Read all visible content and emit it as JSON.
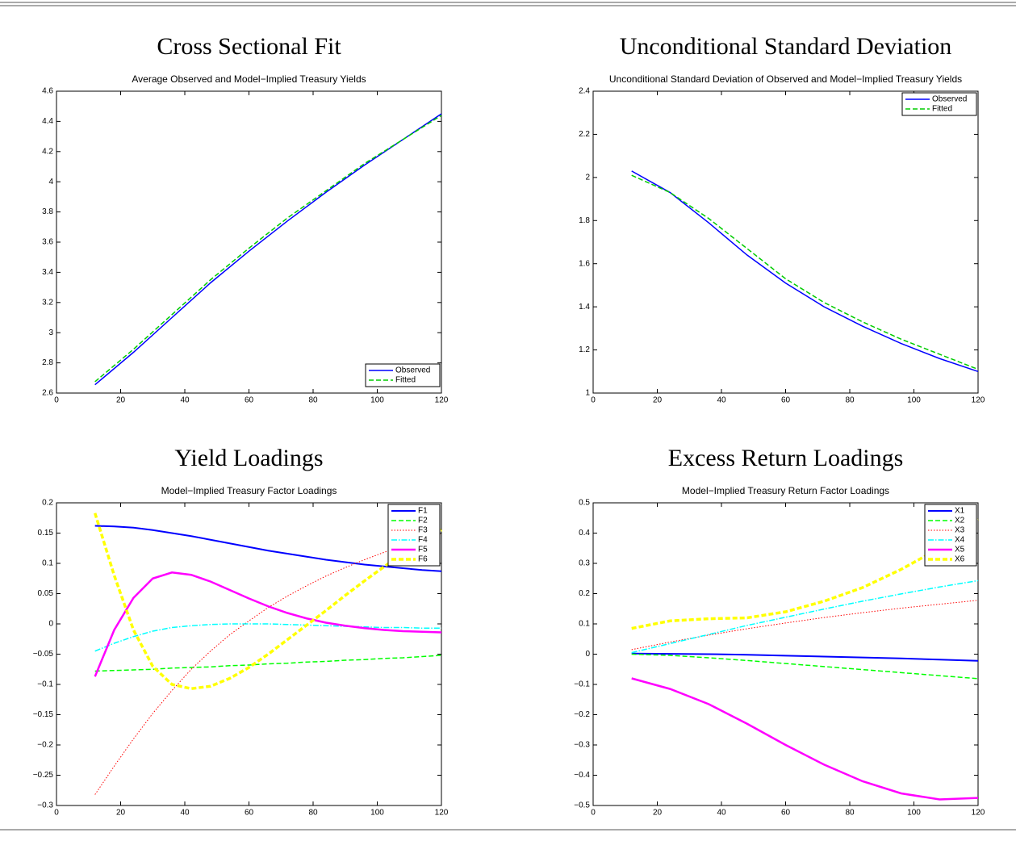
{
  "chart_data": [
    {
      "type": "line",
      "title": "Cross Sectional Fit",
      "subtitle": "Average Observed and Model−Implied Treasury Yields",
      "x": [
        12,
        24,
        36,
        48,
        60,
        72,
        84,
        96,
        108,
        120
      ],
      "series": [
        {
          "name": "Observed",
          "color": "#0000ff",
          "style": "solid",
          "width": 1.5,
          "values": [
            2.655,
            2.87,
            3.1,
            3.33,
            3.54,
            3.74,
            3.93,
            4.11,
            4.28,
            4.45
          ]
        },
        {
          "name": "Fitted",
          "color": "#00cc00",
          "style": "dashed",
          "width": 1.5,
          "values": [
            2.675,
            2.89,
            3.12,
            3.35,
            3.56,
            3.76,
            3.94,
            4.12,
            4.28,
            4.44
          ]
        }
      ],
      "xlim": [
        0,
        120
      ],
      "ylim": [
        2.6,
        4.6
      ],
      "xticks": [
        0,
        20,
        40,
        60,
        80,
        100,
        120
      ],
      "yticks": [
        2.6,
        2.8,
        3,
        3.2,
        3.4,
        3.6,
        3.8,
        4,
        4.2,
        4.4,
        4.6
      ],
      "legend": "lower-right"
    },
    {
      "type": "line",
      "title": "Unconditional Standard Deviation",
      "subtitle": "Unconditional Standard Deviation of Observed and Model−Implied Treasury Yields",
      "x": [
        12,
        24,
        36,
        48,
        60,
        72,
        84,
        96,
        108,
        120
      ],
      "series": [
        {
          "name": "Observed",
          "color": "#0000ff",
          "style": "solid",
          "width": 1.5,
          "values": [
            2.03,
            1.93,
            1.79,
            1.64,
            1.51,
            1.4,
            1.31,
            1.23,
            1.16,
            1.1
          ]
        },
        {
          "name": "Fitted",
          "color": "#00cc00",
          "style": "dashed",
          "width": 1.5,
          "values": [
            2.01,
            1.93,
            1.81,
            1.67,
            1.53,
            1.42,
            1.33,
            1.25,
            1.18,
            1.11
          ]
        }
      ],
      "xlim": [
        0,
        120
      ],
      "ylim": [
        1,
        2.4
      ],
      "xticks": [
        0,
        20,
        40,
        60,
        80,
        100,
        120
      ],
      "yticks": [
        1,
        1.2,
        1.4,
        1.6,
        1.8,
        2,
        2.2,
        2.4
      ],
      "legend": "upper-right"
    },
    {
      "type": "line",
      "title": "Yield Loadings",
      "subtitle": "Model−Implied Treasury Factor Loadings",
      "x": [
        12,
        18,
        24,
        30,
        36,
        42,
        48,
        54,
        60,
        66,
        72,
        78,
        84,
        90,
        96,
        102,
        108,
        114,
        120
      ],
      "series": [
        {
          "name": "F1",
          "color": "#0000ff",
          "style": "solid",
          "width": 2,
          "values": [
            0.162,
            0.161,
            0.159,
            0.155,
            0.15,
            0.145,
            0.139,
            0.133,
            0.127,
            0.121,
            0.116,
            0.111,
            0.106,
            0.102,
            0.098,
            0.095,
            0.092,
            0.089,
            0.087
          ]
        },
        {
          "name": "F2",
          "color": "#00ff00",
          "style": "dashed",
          "width": 1.5,
          "values": [
            -0.078,
            -0.077,
            -0.076,
            -0.075,
            -0.073,
            -0.072,
            -0.071,
            -0.069,
            -0.068,
            -0.066,
            -0.065,
            -0.063,
            -0.062,
            -0.06,
            -0.059,
            -0.057,
            -0.056,
            -0.054,
            -0.052
          ]
        },
        {
          "name": "F3",
          "color": "#ff0000",
          "style": "dotted",
          "width": 1,
          "values": [
            -0.282,
            -0.235,
            -0.19,
            -0.148,
            -0.11,
            -0.075,
            -0.045,
            -0.018,
            0.005,
            0.027,
            0.046,
            0.063,
            0.079,
            0.093,
            0.106,
            0.118,
            0.129,
            0.139,
            0.148
          ]
        },
        {
          "name": "F4",
          "color": "#00ffff",
          "style": "dashdot",
          "width": 1.5,
          "values": [
            -0.045,
            -0.032,
            -0.021,
            -0.012,
            -0.006,
            -0.003,
            -0.001,
            0,
            0,
            0,
            -0.001,
            -0.002,
            -0.003,
            -0.004,
            -0.005,
            -0.006,
            -0.006,
            -0.007,
            -0.007
          ]
        },
        {
          "name": "F5",
          "color": "#ff00ff",
          "style": "solid",
          "width": 2.5,
          "values": [
            -0.087,
            -0.01,
            0.043,
            0.075,
            0.085,
            0.081,
            0.07,
            0.056,
            0.042,
            0.029,
            0.018,
            0.009,
            0.002,
            -0.003,
            -0.007,
            -0.01,
            -0.012,
            -0.013,
            -0.014
          ]
        },
        {
          "name": "F6",
          "color": "#ffff00",
          "style": "dashed",
          "width": 3.5,
          "values": [
            0.183,
            0.08,
            -0.01,
            -0.07,
            -0.1,
            -0.107,
            -0.103,
            -0.09,
            -0.072,
            -0.05,
            -0.026,
            -0.002,
            0.022,
            0.047,
            0.071,
            0.094,
            0.116,
            0.137,
            0.155
          ]
        }
      ],
      "xlim": [
        0,
        120
      ],
      "ylim": [
        -0.3,
        0.2
      ],
      "xticks": [
        0,
        20,
        40,
        60,
        80,
        100,
        120
      ],
      "yticks": [
        {
          "value": -0.3,
          "label": "−0.3"
        },
        {
          "value": -0.25,
          "label": "−0.25"
        },
        {
          "value": -0.2,
          "label": "−0.2"
        },
        {
          "value": -0.15,
          "label": "−0.15"
        },
        {
          "value": -0.1,
          "label": "−0.1"
        },
        {
          "value": -0.05,
          "label": "−0.05"
        },
        0,
        0.05,
        0.1,
        0.15,
        0.2
      ],
      "legend": "upper-right"
    },
    {
      "type": "line",
      "title": "Excess Return Loadings",
      "subtitle": "Model−Implied Treasury Return Factor Loadings",
      "x": [
        12,
        24,
        36,
        48,
        60,
        72,
        84,
        96,
        108,
        120
      ],
      "series": [
        {
          "name": "X1",
          "color": "#0000ff",
          "style": "solid",
          "width": 2,
          "values": [
            0.002,
            0.001,
            0,
            -0.002,
            -0.005,
            -0.008,
            -0.011,
            -0.014,
            -0.018,
            -0.022
          ]
        },
        {
          "name": "X2",
          "color": "#00ff00",
          "style": "dashed",
          "width": 1.5,
          "values": [
            0,
            -0.004,
            -0.012,
            -0.021,
            -0.031,
            -0.041,
            -0.051,
            -0.061,
            -0.071,
            -0.081
          ]
        },
        {
          "name": "X3",
          "color": "#ff0000",
          "style": "dotted",
          "width": 1,
          "values": [
            0.015,
            0.04,
            0.063,
            0.084,
            0.103,
            0.121,
            0.137,
            0.152,
            0.165,
            0.178
          ]
        },
        {
          "name": "X4",
          "color": "#00ffff",
          "style": "dashdot",
          "width": 1.5,
          "values": [
            0.005,
            0.035,
            0.065,
            0.095,
            0.122,
            0.149,
            0.175,
            0.199,
            0.222,
            0.243
          ]
        },
        {
          "name": "X5",
          "color": "#ff00ff",
          "style": "solid",
          "width": 2.5,
          "values": [
            -0.08,
            -0.115,
            -0.165,
            -0.23,
            -0.3,
            -0.365,
            -0.42,
            -0.46,
            -0.48,
            -0.475
          ]
        },
        {
          "name": "X6",
          "color": "#ffff00",
          "style": "dashed",
          "width": 3.5,
          "values": [
            0.085,
            0.11,
            0.117,
            0.12,
            0.14,
            0.175,
            0.22,
            0.28,
            0.35,
            0.445
          ]
        }
      ],
      "xlim": [
        0,
        120
      ],
      "ylim": [
        -0.5,
        0.5
      ],
      "xticks": [
        0,
        20,
        40,
        60,
        80,
        100,
        120
      ],
      "yticks": [
        {
          "value": -0.5,
          "label": "−0.5"
        },
        {
          "value": -0.4,
          "label": "−0.4"
        },
        {
          "value": -0.3,
          "label": "−0.3"
        },
        {
          "value": -0.2,
          "label": "−0.2"
        },
        {
          "value": -0.1,
          "label": "−0.1"
        },
        0,
        0.1,
        0.2,
        0.3,
        0.4,
        0.5
      ],
      "legend": "upper-right"
    }
  ]
}
